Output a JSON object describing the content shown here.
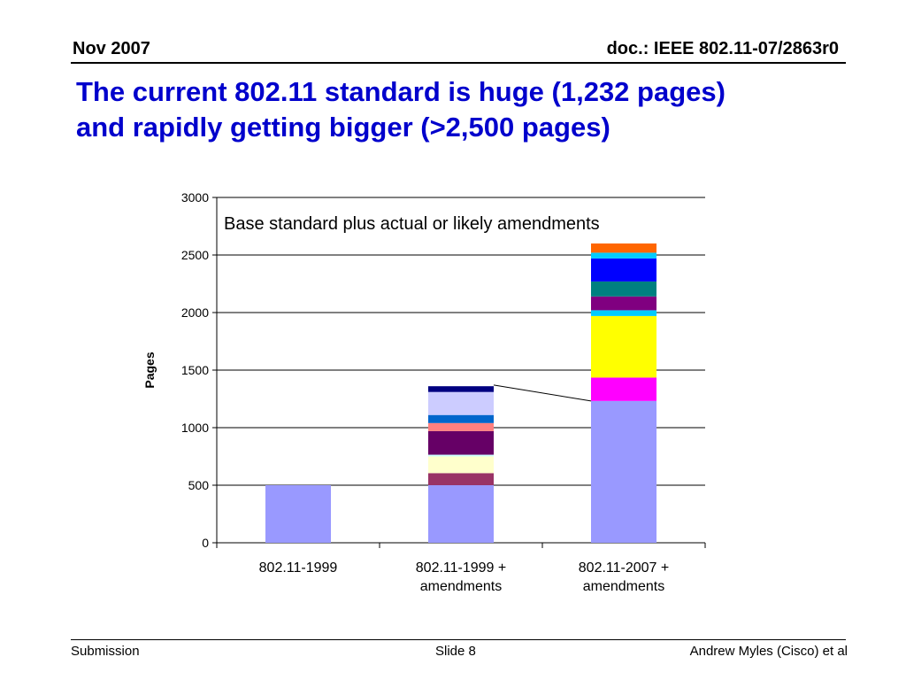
{
  "header": {
    "date": "Nov 2007",
    "doc": "doc.: IEEE 802.11-07/2863r0"
  },
  "title_lines": [
    "The current 802.11 standard is huge (1,232 pages)",
    "and rapidly getting bigger (>2,500 pages)"
  ],
  "chart_data": {
    "type": "bar",
    "stacked": true,
    "annotation": "Base standard plus actual or likely amendments",
    "ylabel": "Pages",
    "xlabel": "",
    "ylim": [
      0,
      3000
    ],
    "yticks": [
      0,
      500,
      1000,
      1500,
      2000,
      2500,
      3000
    ],
    "grid": true,
    "categories": [
      [
        "802.11-1999"
      ],
      [
        "802.11-1999 +",
        "amendments"
      ],
      [
        "802.11-2007 +",
        "amendments"
      ]
    ],
    "stacks": [
      [
        {
          "value": 500,
          "color": "#9999ff"
        }
      ],
      [
        {
          "value": 500,
          "color": "#9999ff"
        },
        {
          "value": 105,
          "color": "#993366"
        },
        {
          "value": 145,
          "color": "#ffffcc"
        },
        {
          "value": 15,
          "color": "#ccffff"
        },
        {
          "value": 205,
          "color": "#660066"
        },
        {
          "value": 70,
          "color": "#ff8080"
        },
        {
          "value": 70,
          "color": "#0066cc"
        },
        {
          "value": 200,
          "color": "#ccccff"
        },
        {
          "value": 50,
          "color": "#000080"
        }
      ],
      [
        {
          "value": 1232,
          "color": "#9999ff"
        },
        {
          "value": 203,
          "color": "#ff00ff"
        },
        {
          "value": 535,
          "color": "#ffff00"
        },
        {
          "value": 50,
          "color": "#00ccff"
        },
        {
          "value": 120,
          "color": "#800080"
        },
        {
          "value": 130,
          "color": "#008080"
        },
        {
          "value": 200,
          "color": "#0000ff"
        },
        {
          "value": 50,
          "color": "#00ccff"
        },
        {
          "value": 80,
          "color": "#ff6600"
        }
      ]
    ],
    "connector_lines": [
      {
        "from_category": 0,
        "from_value": 500,
        "to_category": 1,
        "to_value": 500
      },
      {
        "from_category": 1,
        "from_value": 1370,
        "to_category": 2,
        "to_value": 1232
      }
    ]
  },
  "footer": {
    "left": "Submission",
    "slide": "Slide 8",
    "author": "Andrew Myles (Cisco) et al"
  }
}
